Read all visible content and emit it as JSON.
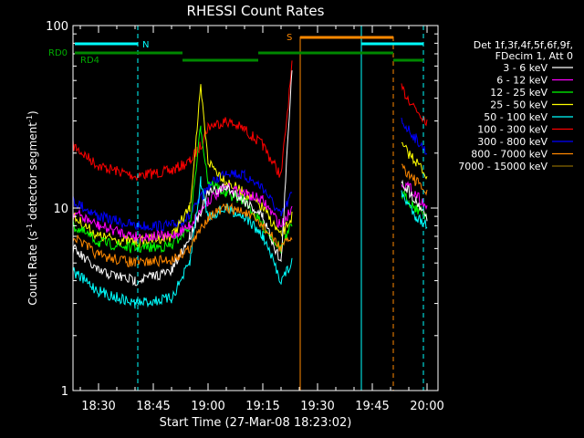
{
  "chart_data": {
    "type": "line",
    "title": "RHESSI Count Rates",
    "xlabel": "Start Time (27-Mar-08 18:23:02)",
    "ylabel_main": "Count Rate (s",
    "ylabel_sup": "-1",
    "ylabel_rest": " detector segment",
    "ylabel_sup2": "-1",
    "ylabel_close": ")",
    "y_scale": "log",
    "ylim": [
      1,
      100
    ],
    "xlim_minutes": [
      "18:23",
      "20:03"
    ],
    "x_ticks": [
      "18:30",
      "18:45",
      "19:00",
      "19:15",
      "19:30",
      "19:45",
      "20:00"
    ],
    "y_ticks": [
      "1",
      "10",
      "100"
    ],
    "legend": {
      "placement": "right",
      "header": [
        "Det 1f,3f,4f,5f,6f,9f,",
        "FDecim 1, Att 0"
      ],
      "entries": [
        {
          "label": "3 - 6 keV",
          "color": "#ffffff"
        },
        {
          "label": "6 - 12 keV",
          "color": "#ff00ff"
        },
        {
          "label": "12 - 25 keV",
          "color": "#00ff00"
        },
        {
          "label": "25 - 50 keV",
          "color": "#ffff00"
        },
        {
          "label": "50 - 100 keV",
          "color": "#00ffff"
        },
        {
          "label": "100 - 300 keV",
          "color": "#ff0000"
        },
        {
          "label": "300 - 800 keV",
          "color": "#0000ff"
        },
        {
          "label": "800 - 7000 keV",
          "color": "#ff8800"
        },
        {
          "label": "7000 - 15000 keV",
          "color": "#886600"
        }
      ]
    },
    "flag_labels": {
      "rd0": "RD0",
      "rd4": "RD4",
      "n": "N",
      "s": "S"
    },
    "series": [
      {
        "color": "#ff0000",
        "segments": [
          {
            "x": [
              "18:23",
              "18:30",
              "18:40",
              "18:50",
              "18:55",
              "18:58",
              "19:00",
              "19:05",
              "19:10",
              "19:15",
              "19:20",
              "19:23"
            ],
            "y": [
              22,
              17,
              15,
              16,
              18,
              22,
              28,
              30,
              27,
              22,
              15,
              60
            ]
          },
          {
            "x": [
              "19:53",
              "19:57",
              "20:00"
            ],
            "y": [
              45,
              35,
              30
            ]
          }
        ]
      },
      {
        "color": "#0000ff",
        "segments": [
          {
            "x": [
              "18:23",
              "18:30",
              "18:40",
              "18:50",
              "18:55",
              "19:00",
              "19:05",
              "19:10",
              "19:15",
              "19:20",
              "19:23"
            ],
            "y": [
              11,
              9,
              8,
              8,
              9,
              13,
              16,
              15,
              13,
              9,
              12
            ]
          },
          {
            "x": [
              "19:53",
              "19:57",
              "20:00"
            ],
            "y": [
              30,
              24,
              20
            ]
          }
        ]
      },
      {
        "color": "#ffff00",
        "segments": [
          {
            "x": [
              "18:23",
              "18:30",
              "18:40",
              "18:50",
              "18:55",
              "18:58",
              "19:00",
              "19:05",
              "19:10",
              "19:15",
              "19:20",
              "19:23"
            ],
            "y": [
              9,
              7,
              6.5,
              7,
              10,
              45,
              18,
              14,
              12,
              10,
              7,
              9
            ]
          },
          {
            "x": [
              "19:53",
              "19:57",
              "20:00"
            ],
            "y": [
              22,
              18,
              15
            ]
          }
        ]
      },
      {
        "color": "#00ff00",
        "segments": [
          {
            "x": [
              "18:23",
              "18:30",
              "18:40",
              "18:50",
              "18:55",
              "18:58",
              "19:00",
              "19:05",
              "19:10",
              "19:15",
              "19:20",
              "19:23"
            ],
            "y": [
              8,
              6.5,
              6,
              6.2,
              8,
              28,
              14,
              12,
              11,
              8,
              6,
              8
            ]
          },
          {
            "x": [
              "19:53",
              "19:57",
              "20:00"
            ],
            "y": [
              12,
              10,
              9
            ]
          }
        ]
      },
      {
        "color": "#ff00ff",
        "segments": [
          {
            "x": [
              "18:23",
              "18:30",
              "18:40",
              "18:50",
              "18:55",
              "19:00",
              "19:05",
              "19:10",
              "19:15",
              "19:20",
              "19:23"
            ],
            "y": [
              9.5,
              8,
              7,
              7,
              8,
              11,
              13,
              12,
              11,
              8,
              10
            ]
          },
          {
            "x": [
              "19:53",
              "19:57",
              "20:00"
            ],
            "y": [
              14,
              12,
              10
            ]
          }
        ]
      },
      {
        "color": "#ffffff",
        "segments": [
          {
            "x": [
              "18:23",
              "18:30",
              "18:40",
              "18:50",
              "18:55",
              "19:00",
              "19:05",
              "19:10",
              "19:15",
              "19:20",
              "19:23"
            ],
            "y": [
              6,
              4.5,
              4,
              4.5,
              7,
              12,
              13,
              11,
              9,
              5,
              60
            ]
          },
          {
            "x": [
              "19:53",
              "19:57",
              "20:00"
            ],
            "y": [
              14,
              11,
              9
            ]
          }
        ]
      },
      {
        "color": "#00ffff",
        "segments": [
          {
            "x": [
              "18:23",
              "18:30",
              "18:40",
              "18:50",
              "18:55",
              "18:58",
              "19:00",
              "19:05",
              "19:10",
              "19:15",
              "19:20",
              "19:23"
            ],
            "y": [
              4.5,
              3.5,
              3,
              3.2,
              5,
              14,
              9,
              10,
              9,
              7,
              4,
              5
            ]
          },
          {
            "x": [
              "19:53",
              "19:57",
              "20:00"
            ],
            "y": [
              12,
              9,
              8
            ]
          }
        ]
      },
      {
        "color": "#ff8800",
        "segments": [
          {
            "x": [
              "18:23",
              "18:30",
              "18:40",
              "18:50",
              "18:55",
              "19:00",
              "19:05",
              "19:10",
              "19:15",
              "19:20",
              "19:23"
            ],
            "y": [
              7,
              5.5,
              5,
              5.2,
              6,
              9,
              10,
              9.5,
              8,
              6,
              7
            ]
          },
          {
            "x": [
              "19:53",
              "19:57",
              "20:00"
            ],
            "y": [
              17,
              14,
              12
            ]
          }
        ]
      }
    ]
  }
}
